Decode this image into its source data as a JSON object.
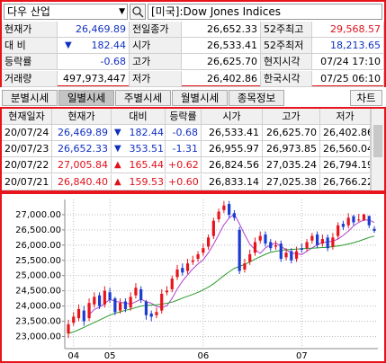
{
  "search": {
    "market": "다우 산업",
    "name": "[미국]:Dow Jones Indices"
  },
  "quote": {
    "arrow": "▼",
    "rows": [
      [
        "현재가",
        "26,469.89",
        "전일종가",
        "26,652.33",
        "52주최고",
        "29,568.57"
      ],
      [
        "대 비",
        "182.44",
        "시가",
        "26,533.41",
        "52주최저",
        "18,213.65"
      ],
      [
        "등락률",
        "-0.68",
        "고가",
        "26,625.70",
        "현지시각",
        "07/24 17:10"
      ],
      [
        "거래량",
        "497,973,447",
        "저가",
        "26,402.86",
        "한국시각",
        "07/25 06:10"
      ]
    ]
  },
  "tabs": {
    "items": [
      "분별시세",
      "일별시세",
      "주별시세",
      "월별시세",
      "종목정보"
    ],
    "active": 1,
    "button": "차트"
  },
  "table": {
    "header": [
      "현재일자",
      "현재가",
      "대비",
      "등락률",
      "시가",
      "고가",
      "저가"
    ],
    "rows": [
      [
        "20/07/24",
        "26,469.89",
        "▼",
        "182.44",
        "-0.68",
        "26,533.41",
        "26,625.70",
        "26,402.86"
      ],
      [
        "20/07/23",
        "26,652.33",
        "▼",
        "353.51",
        "-1.31",
        "26,955.97",
        "26,973.85",
        "26,560.04"
      ],
      [
        "20/07/22",
        "27,005.84",
        "▲",
        "165.44",
        "+0.62",
        "26,824.56",
        "27,035.24",
        "26,794.19"
      ],
      [
        "20/07/21",
        "26,840.40",
        "▲",
        "159.53",
        "+0.60",
        "26,833.14",
        "27,025.38",
        "26,766.22"
      ]
    ]
  },
  "chart_data": {
    "type": "candlestick",
    "categories": [
      null,
      "04",
      null,
      null,
      null,
      null,
      null,
      null,
      "05",
      null,
      null,
      null,
      null,
      null,
      null,
      null,
      null,
      null,
      null,
      null,
      null,
      null,
      null,
      null,
      null,
      null,
      "06",
      null,
      null,
      null,
      null,
      null,
      null,
      null,
      null,
      null,
      null,
      null,
      null,
      null,
      null,
      null,
      null,
      null,
      null,
      "07",
      null,
      null,
      null,
      null,
      null,
      null,
      null,
      null,
      null,
      null,
      null,
      null,
      null,
      null
    ],
    "open": [
      23100,
      23450,
      23600,
      23850,
      23600,
      24050,
      24350,
      24050,
      24450,
      24250,
      23850,
      24150,
      23950,
      24350,
      24550,
      24150,
      23750,
      23700,
      23850,
      24450,
      24550,
      24950,
      25250,
      25150,
      25450,
      25550,
      25750,
      25950,
      26300,
      26850,
      27150,
      27350,
      27050,
      26500,
      25200,
      25450,
      25750,
      26150,
      26350,
      26100,
      25950,
      26050,
      25600,
      25800,
      25550,
      25900,
      25900,
      26150,
      26350,
      26050,
      26250,
      25950,
      26300,
      26700,
      26650,
      26950,
      26833.14,
      26824.56,
      26955.97,
      26533.41
    ],
    "high": [
      23550,
      23800,
      24050,
      24000,
      24250,
      24450,
      24450,
      24650,
      24600,
      24300,
      24250,
      24250,
      24450,
      24750,
      24650,
      24200,
      23850,
      23950,
      24550,
      24650,
      25000,
      25350,
      25400,
      25550,
      25650,
      25800,
      26050,
      26350,
      26900,
      27200,
      27450,
      27450,
      27150,
      26600,
      25550,
      25850,
      26250,
      26450,
      26450,
      26200,
      26150,
      26150,
      25900,
      25900,
      25950,
      26050,
      26200,
      26400,
      26450,
      26350,
      26350,
      26400,
      26750,
      26800,
      27050,
      27000,
      27025.38,
      27035.24,
      26973.85,
      26625.7
    ],
    "low": [
      22950,
      23350,
      23500,
      23350,
      23500,
      23950,
      23900,
      23950,
      24100,
      23700,
      23750,
      23800,
      23850,
      24250,
      24100,
      23550,
      23500,
      23600,
      23750,
      24350,
      24450,
      24850,
      25000,
      25050,
      25350,
      25450,
      25650,
      25850,
      26200,
      26750,
      27050,
      26900,
      26800,
      25050,
      25100,
      25350,
      25650,
      26050,
      25950,
      25800,
      25850,
      25450,
      25500,
      25400,
      25450,
      25750,
      25800,
      26050,
      25900,
      25950,
      25800,
      25850,
      26200,
      26500,
      26550,
      26650,
      26766.22,
      26794.19,
      26560.04,
      26402.86
    ],
    "close": [
      23400,
      23650,
      23900,
      23500,
      24100,
      24300,
      24000,
      24500,
      24200,
      23800,
      24100,
      23900,
      24300,
      24600,
      24200,
      23700,
      23650,
      23800,
      24400,
      24500,
      24900,
      25200,
      25100,
      25400,
      25500,
      25700,
      25900,
      26250,
      26800,
      27100,
      27300,
      27000,
      26900,
      25150,
      25400,
      25700,
      26100,
      26300,
      26050,
      25900,
      26000,
      25550,
      25750,
      25500,
      25800,
      25850,
      26100,
      26300,
      26000,
      26200,
      25900,
      26250,
      26650,
      26600,
      26900,
      26750,
      26840.4,
      27005.84,
      26652.33,
      26469.89
    ],
    "up_color": "#e8141c",
    "down_color": "#1a3cd0",
    "lines": [
      {
        "color": "#b040d0",
        "values": [
          null,
          null,
          null,
          null,
          23710,
          23890,
          23960,
          24080,
          24220,
          24160,
          24120,
          24100,
          24060,
          24140,
          24220,
          24140,
          24090,
          23990,
          23950,
          24010,
          24250,
          24560,
          24820,
          25020,
          25220,
          25380,
          25520,
          25750,
          26030,
          26350,
          26670,
          26890,
          27020,
          26690,
          26350,
          26030,
          25850,
          25730,
          25910,
          26010,
          26070,
          25960,
          25850,
          25740,
          25720,
          25690,
          25800,
          25910,
          26010,
          26090,
          26100,
          26130,
          26200,
          26320,
          26460,
          26630,
          26750,
          26820,
          26830,
          26740
        ]
      },
      {
        "color": "#2a9a2a",
        "values": [
          23100,
          23150,
          23220,
          23300,
          23380,
          23460,
          23540,
          23620,
          23700,
          23760,
          23810,
          23860,
          23900,
          23950,
          24000,
          24020,
          24030,
          24040,
          24060,
          24090,
          24130,
          24190,
          24260,
          24320,
          24380,
          24450,
          24530,
          24620,
          24730,
          24860,
          25000,
          25120,
          25240,
          25300,
          25370,
          25450,
          25540,
          25620,
          25700,
          25760,
          25800,
          25830,
          25850,
          25860,
          25870,
          25880,
          25890,
          25900,
          25910,
          25920,
          25930,
          25950,
          25970,
          26000,
          26040,
          26080,
          26130,
          26190,
          26250,
          26300
        ]
      }
    ],
    "ylim": [
      22600,
      27500
    ],
    "yticks": [
      {
        "value": 23000,
        "label": "23,000.00"
      },
      {
        "value": 23500,
        "label": "23,500.00"
      },
      {
        "value": 24000,
        "label": "24,000.00"
      },
      {
        "value": 24500,
        "label": "24,500.00"
      },
      {
        "value": 25000,
        "label": "25,000.00"
      },
      {
        "value": 25500,
        "label": "25,500.00"
      },
      {
        "value": 26000,
        "label": "26,000.00"
      },
      {
        "value": 26500,
        "label": "26,500.00"
      },
      {
        "value": 27000,
        "label": "27,000.00"
      }
    ],
    "grid": true
  }
}
